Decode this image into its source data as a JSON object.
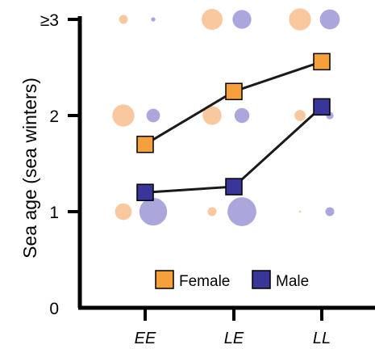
{
  "chart_data": {
    "type": "scatter",
    "ylabel": "Sea age (sea winters)",
    "xlabel": "",
    "categories": [
      "EE",
      "LE",
      "LL"
    ],
    "yticks": [
      {
        "value": 0,
        "label": "0"
      },
      {
        "value": 1,
        "label": "1"
      },
      {
        "value": 2,
        "label": "2"
      },
      {
        "value": 3,
        "label": "≥3"
      }
    ],
    "ylim": [
      0,
      3
    ],
    "grid": false,
    "legend_position": "bottom",
    "legend": [
      {
        "name": "Female",
        "color": "#F5A03C"
      },
      {
        "name": "Male",
        "color": "#3A3598"
      }
    ],
    "series": [
      {
        "name": "Female",
        "line_color": "#1a1a1a",
        "marker_color": "#F5A03C",
        "values": [
          1.7,
          2.25,
          2.56
        ]
      },
      {
        "name": "Male",
        "line_color": "#1a1a1a",
        "marker_color": "#3A3598",
        "values": [
          1.2,
          1.26,
          2.09
        ]
      }
    ],
    "bubbles": {
      "female_color": "#F9BE8E",
      "male_color": "#9C98D6",
      "points": [
        {
          "category": "EE",
          "sex": "Female",
          "sea_age": 1,
          "size": 0.47
        },
        {
          "category": "EE",
          "sex": "Male",
          "sea_age": 1,
          "size": 0.78
        },
        {
          "category": "EE",
          "sex": "Female",
          "sea_age": 2,
          "size": 0.62
        },
        {
          "category": "EE",
          "sex": "Male",
          "sea_age": 2,
          "size": 0.38
        },
        {
          "category": "EE",
          "sex": "Female",
          "sea_age": 3,
          "size": 0.25
        },
        {
          "category": "EE",
          "sex": "Male",
          "sea_age": 3,
          "size": 0.12
        },
        {
          "category": "LE",
          "sex": "Female",
          "sea_age": 1,
          "size": 0.25
        },
        {
          "category": "LE",
          "sex": "Male",
          "sea_age": 1,
          "size": 0.81
        },
        {
          "category": "LE",
          "sex": "Female",
          "sea_age": 2,
          "size": 0.53
        },
        {
          "category": "LE",
          "sex": "Male",
          "sea_age": 2,
          "size": 0.42
        },
        {
          "category": "LE",
          "sex": "Female",
          "sea_age": 3,
          "size": 0.59
        },
        {
          "category": "LE",
          "sex": "Male",
          "sea_age": 3,
          "size": 0.53
        },
        {
          "category": "LL",
          "sex": "Female",
          "sea_age": 1,
          "size": 0.06
        },
        {
          "category": "LL",
          "sex": "Male",
          "sea_age": 1,
          "size": 0.25
        },
        {
          "category": "LL",
          "sex": "Female",
          "sea_age": 2,
          "size": 0.31
        },
        {
          "category": "LL",
          "sex": "Male",
          "sea_age": 2,
          "size": 0.21
        },
        {
          "category": "LL",
          "sex": "Female",
          "sea_age": 3,
          "size": 0.62
        },
        {
          "category": "LL",
          "sex": "Male",
          "sea_age": 3,
          "size": 0.56
        }
      ]
    }
  }
}
